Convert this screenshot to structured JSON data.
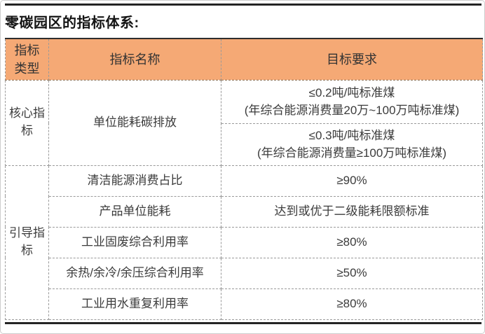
{
  "page": {
    "title": "零碳园区的指标体系:"
  },
  "table": {
    "headers": [
      "指标类型",
      "指标名称",
      "目标要求"
    ],
    "core": {
      "category": "核心指标",
      "indicator": "单位能耗碳排放",
      "targets": [
        {
          "line1": "≤0.2吨/吨标准煤",
          "line2": "(年综合能源消费量20万~100万吨标准煤)"
        },
        {
          "line1": "≤0.3吨/吨标准煤",
          "line2": "(年综合能源消费量≥100万吨标准煤)"
        }
      ]
    },
    "guide": {
      "category": "引导指标",
      "rows": [
        {
          "name": "清洁能源消费占比",
          "target": "≥90%"
        },
        {
          "name": "产品单位能耗",
          "target": "达到或优于二级能耗限额标准"
        },
        {
          "name": "工业固废综合利用率",
          "target": "≥80%"
        },
        {
          "name": "余热/余冷/余压综合利用率",
          "target": "≥50%"
        },
        {
          "name": "工业用水重复利用率",
          "target": "≥80%"
        }
      ]
    },
    "colors": {
      "header_bg": "#F5A975",
      "border_dash": "#9A9A9A",
      "rule": "#242424",
      "text": "#3B3B3B"
    }
  }
}
